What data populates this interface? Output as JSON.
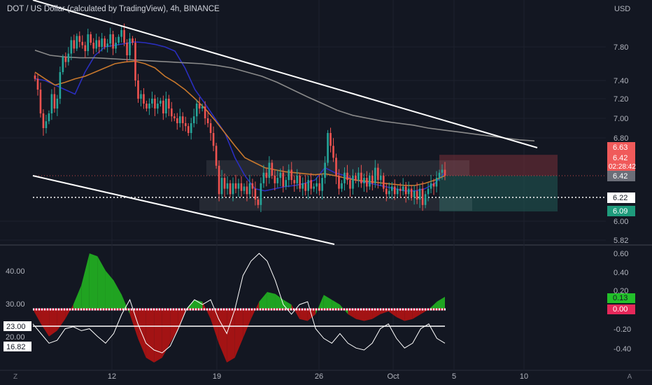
{
  "header": {
    "title": "DOT / US Dollar (calculated by TradingView), 4h, BINANCE",
    "currency": "USD"
  },
  "colors": {
    "background": "#131722",
    "up": "#26a69a",
    "down": "#ef5350",
    "ema_fast": "#2a2ebf",
    "ema_mid": "#c8782d",
    "ema_slow": "#8a8a8a",
    "stop_zone": "#5e2a33",
    "target_zone": "#1d4a48",
    "osc_pos": "#22b022",
    "osc_neg": "#b01414"
  },
  "chart_data": [
    {
      "type": "candlestick",
      "title": "DOT / US Dollar (calculated by TradingView), 4h, BINANCE",
      "x_ticks": [
        "12",
        "19",
        "26",
        "Oct",
        "5",
        "10"
      ],
      "y_ticks": [
        "7.80",
        "7.40",
        "7.20",
        "7.00",
        "6.80",
        "6.00",
        "5.82"
      ],
      "y_scale": "log",
      "ylim": [
        5.82,
        8.3
      ],
      "price_labels": {
        "stop": "6.63",
        "last_price": "6.42",
        "countdown": "02:28:42",
        "mid": "6.42",
        "level": "6.22",
        "target": "6.09"
      },
      "horizontal_level": 6.22,
      "position": {
        "stop": 6.63,
        "entry": 6.42,
        "target": 6.09
      },
      "series": [
        {
          "type": "candles",
          "ohlc_close": [
            7.42,
            7.3,
            7.05,
            6.9,
            6.97,
            7.05,
            7.25,
            7.1,
            7.2,
            7.5,
            7.68,
            7.62,
            7.72,
            7.88,
            7.78,
            7.93,
            7.86,
            7.82,
            7.75,
            7.95,
            7.85,
            7.78,
            7.88,
            7.8,
            7.9,
            7.8,
            7.84,
            7.95,
            7.78,
            7.85,
            7.92,
            8.0,
            7.85,
            7.7,
            7.9,
            7.85,
            7.4,
            7.2,
            7.25,
            7.15,
            7.1,
            7.15,
            7.2,
            7.1,
            7.15,
            7.18,
            7.05,
            7.2,
            7.1,
            7.02,
            7.0,
            6.95,
            7.02,
            6.95,
            6.92,
            6.85,
            6.95,
            7.02,
            7.15,
            7.1,
            7.12,
            7.0,
            6.95,
            6.85,
            6.72,
            6.52,
            6.25,
            6.4,
            6.3,
            6.35,
            6.25,
            6.35,
            6.3,
            6.35,
            6.28,
            6.32,
            6.25,
            6.35,
            6.3,
            6.2,
            6.15,
            6.35,
            6.45,
            6.4,
            6.55,
            6.42,
            6.35,
            6.4,
            6.45,
            6.32,
            6.38,
            6.48,
            6.38,
            6.35,
            6.42,
            6.3,
            6.35,
            6.28,
            6.38,
            6.3,
            6.32,
            6.35,
            6.28,
            6.4,
            6.55,
            6.85,
            6.72,
            6.6,
            6.42,
            6.3,
            6.35,
            6.45,
            6.38,
            6.3,
            6.42,
            6.38,
            6.45,
            6.35,
            6.4,
            6.32,
            6.42,
            6.35,
            6.5,
            6.38,
            6.42,
            6.3,
            6.25,
            6.28,
            6.32,
            6.25,
            6.3,
            6.28,
            6.32,
            6.25,
            6.3,
            6.22,
            6.28,
            6.2,
            6.3,
            6.15,
            6.25,
            6.3,
            6.35,
            6.32,
            6.4,
            6.45,
            6.48,
            6.42
          ],
          "label": ""
        },
        {
          "name": "",
          "type": "line",
          "values": [
            7.42,
            7.4,
            7.35,
            7.3,
            7.25,
            7.5,
            7.7,
            7.8,
            7.82,
            7.84,
            7.86,
            7.85,
            7.83,
            7.8,
            7.75,
            7.55,
            7.3,
            7.15,
            7.0,
            6.85,
            6.6,
            6.42,
            6.3,
            6.28,
            6.3,
            6.32,
            6.33,
            6.35,
            6.38,
            6.5,
            6.45,
            6.42,
            6.38,
            6.36,
            6.34,
            6.32,
            6.3,
            6.28,
            6.28,
            6.3,
            6.35,
            6.45
          ]
        },
        {
          "name": "",
          "type": "line",
          "values": [
            7.5,
            7.42,
            7.35,
            7.38,
            7.42,
            7.45,
            7.5,
            7.55,
            7.6,
            7.62,
            7.63,
            7.6,
            7.55,
            7.45,
            7.38,
            7.3,
            7.2,
            7.1,
            6.98,
            6.85,
            6.72,
            6.6,
            6.55,
            6.5,
            6.48,
            6.46,
            6.45,
            6.44,
            6.43,
            6.44,
            6.42,
            6.4,
            6.38,
            6.37,
            6.36,
            6.35,
            6.34,
            6.33,
            6.33,
            6.35,
            6.38,
            6.42
          ]
        },
        {
          "name": "",
          "type": "line",
          "values": [
            7.76,
            7.7,
            7.68,
            7.67,
            7.67,
            7.66,
            7.65,
            7.64,
            7.63,
            7.62,
            7.61,
            7.6,
            7.58,
            7.55,
            7.5,
            7.45,
            7.38,
            7.3,
            7.22,
            7.15,
            7.08,
            7.03,
            7.0,
            6.97,
            6.95,
            6.93,
            6.9,
            6.88,
            6.86,
            6.84,
            6.82,
            6.8,
            6.78,
            6.77
          ]
        }
      ]
    },
    {
      "type": "area",
      "title": "",
      "y_ticks_left": [
        "40.00",
        "30.00",
        "20.00"
      ],
      "y_ticks_right": [
        "0.60",
        "0.40",
        "0.20",
        "-0.20",
        "-0.40"
      ],
      "left_labels": {
        "level": "23.00",
        "value": "16.82"
      },
      "right_labels": {
        "positive": "0.13",
        "zero": "0.00"
      },
      "series": [
        {
          "name": "",
          "type": "histogram",
          "values": [
            0.0,
            -0.15,
            -0.28,
            -0.22,
            -0.1,
            0.05,
            0.25,
            0.58,
            0.55,
            0.4,
            0.3,
            0.15,
            -0.05,
            -0.3,
            -0.5,
            -0.55,
            -0.5,
            -0.35,
            -0.2,
            0.0,
            0.1,
            0.08,
            -0.1,
            -0.35,
            -0.55,
            -0.5,
            -0.3,
            -0.1,
            0.08,
            0.18,
            0.16,
            0.1,
            0.05,
            -0.1,
            -0.12,
            -0.05,
            0.15,
            0.1,
            0.05,
            -0.05,
            -0.1,
            -0.12,
            -0.1,
            -0.05,
            -0.02,
            -0.08,
            -0.12,
            -0.1,
            -0.05,
            0.0,
            0.08,
            0.13
          ]
        },
        {
          "name": "",
          "type": "line",
          "values": [
            -0.15,
            -0.25,
            -0.35,
            -0.32,
            -0.2,
            -0.18,
            -0.22,
            -0.2,
            -0.28,
            -0.35,
            -0.25,
            -0.05,
            0.1,
            -0.15,
            -0.35,
            -0.42,
            -0.45,
            -0.38,
            -0.2,
            0.0,
            0.1,
            0.05,
            0.1,
            -0.1,
            -0.25,
            0.0,
            0.35,
            0.5,
            0.58,
            0.5,
            0.3,
            0.05,
            -0.05,
            0.05,
            0.08,
            -0.2,
            -0.3,
            -0.35,
            -0.25,
            -0.35,
            -0.4,
            -0.42,
            -0.35,
            -0.2,
            -0.15,
            -0.3,
            -0.4,
            -0.35,
            -0.2,
            -0.15,
            -0.3,
            -0.35
          ]
        }
      ]
    }
  ],
  "bottom_bar": {
    "left": "Z",
    "right": "A"
  }
}
